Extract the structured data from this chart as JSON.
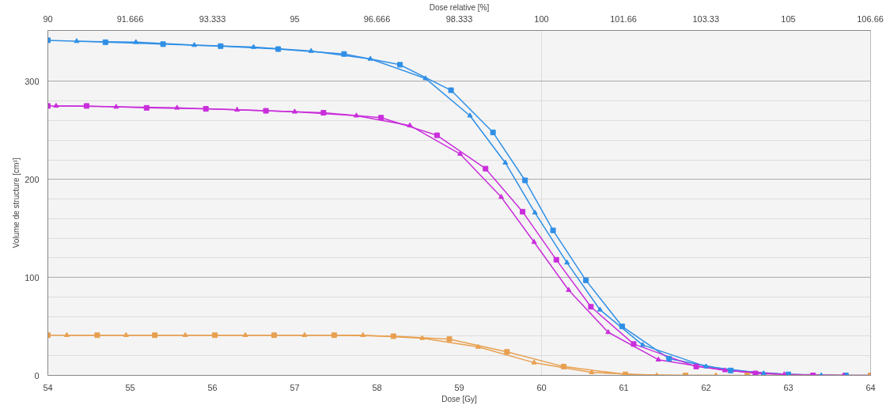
{
  "chart_data": {
    "type": "line",
    "xlabel": "Dose [Gy]",
    "x2label": "Dose relative [%]",
    "ylabel": "Volume de structure [cm³]",
    "xlim": [
      54,
      64
    ],
    "xticks": [
      54,
      55,
      56,
      57,
      58,
      59,
      60,
      61,
      62,
      63,
      64
    ],
    "x2lim": [
      90,
      106.6667
    ],
    "x2ticks": [
      90,
      91.666,
      93.333,
      95,
      96.666,
      98.333,
      100,
      101.66,
      103.33,
      105,
      106.66
    ],
    "ylim": [
      0,
      352
    ],
    "yticks": [
      0,
      100,
      200,
      300
    ],
    "grid": true,
    "line_style": "solid",
    "series": [
      {
        "color": "#2f8fe6",
        "marker": "square",
        "x": [
          54,
          54.7,
          55.4,
          56.1,
          56.8,
          57.6,
          58.28,
          58.9,
          59.41,
          59.8,
          60.14,
          60.54,
          60.98,
          61.55,
          62.3,
          63.0,
          63.7,
          64
        ],
        "values": [
          342,
          340,
          338,
          336,
          333,
          328,
          317,
          291,
          248,
          199,
          148,
          97,
          50,
          17,
          5,
          1,
          0,
          0
        ]
      },
      {
        "color": "#2f8fe6",
        "marker": "triangle",
        "x": [
          54.35,
          55.07,
          55.78,
          56.5,
          57.2,
          57.92,
          58.59,
          59.13,
          59.56,
          59.92,
          60.31,
          60.71,
          61.23,
          62.0,
          62.7,
          63.4
        ],
        "values": [
          341,
          340,
          337,
          335,
          331,
          323,
          303,
          265,
          217,
          166,
          115,
          67,
          31,
          9,
          2,
          0
        ]
      },
      {
        "color": "#c92edb",
        "marker": "square",
        "x": [
          54,
          54.47,
          55.2,
          55.92,
          56.65,
          57.35,
          58.05,
          58.73,
          59.32,
          59.77,
          60.18,
          60.6,
          61.12,
          61.88,
          62.6,
          63.3,
          64
        ],
        "values": [
          275,
          275,
          273,
          272,
          270,
          268,
          263,
          245,
          211,
          167,
          118,
          70,
          32,
          9,
          2,
          0,
          0
        ]
      },
      {
        "color": "#c92edb",
        "marker": "triangle",
        "x": [
          54.1,
          54.83,
          55.57,
          56.3,
          57.0,
          57.75,
          58.4,
          59.01,
          59.51,
          59.91,
          60.33,
          60.81,
          61.42,
          62.23,
          62.95,
          63.67
        ],
        "values": [
          275,
          274,
          273,
          271,
          269,
          265,
          255,
          226,
          182,
          136,
          87,
          44,
          16,
          5,
          1,
          0
        ]
      },
      {
        "color": "#e8a050",
        "marker": "square",
        "x": [
          54,
          54.6,
          55.3,
          56.03,
          56.75,
          57.48,
          58.2,
          58.88,
          59.58,
          60.27,
          61.02,
          61.75,
          62.5,
          64
        ],
        "values": [
          41,
          41,
          41,
          41,
          41,
          41,
          40,
          37,
          24,
          9,
          1,
          0,
          0,
          0
        ]
      },
      {
        "color": "#e8a050",
        "marker": "triangle",
        "x": [
          54.23,
          54.95,
          55.67,
          56.4,
          57.12,
          57.83,
          58.55,
          59.23,
          59.91,
          60.61,
          61.4,
          62.12
        ],
        "values": [
          41,
          41,
          41,
          41,
          41,
          41,
          38,
          29,
          13,
          3,
          0,
          0
        ]
      }
    ]
  }
}
